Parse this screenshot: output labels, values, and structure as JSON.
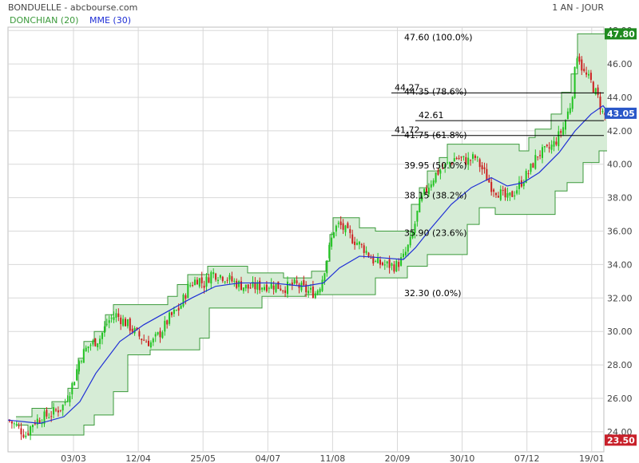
{
  "header": {
    "title": "BONDUELLE - abcbourse.com",
    "period": "1 AN - JOUR"
  },
  "legend": {
    "donchian": "DONCHIAN (20)",
    "mme": "MME (30)"
  },
  "colors": {
    "donchian": "#3b9a3b",
    "donchian_fill": "#d6ecd6",
    "mme": "#1f2fd6",
    "up": "#22c322",
    "down": "#cc1f1f",
    "grid": "#d8d8d8",
    "badge_high": "#1f8a1f",
    "badge_last": "#2a57c8",
    "badge_low": "#c8202a"
  },
  "chart_data": {
    "type": "candlestick",
    "title": "BONDUELLE - abcbourse.com",
    "ylim": [
      22.8,
      48.2
    ],
    "y_ticks": [
      "24.00",
      "26.00",
      "28.00",
      "30.00",
      "32.00",
      "34.00",
      "36.00",
      "38.00",
      "40.00",
      "42.00",
      "44.00",
      "46.00",
      "48.00"
    ],
    "x_ticks": [
      "03/03",
      "12/04",
      "25/05",
      "04/07",
      "11/08",
      "20/09",
      "30/10",
      "07/12",
      "19/01"
    ],
    "price_path": [
      [
        0,
        24.7
      ],
      [
        12,
        24.3
      ],
      [
        22,
        23.8
      ],
      [
        32,
        24.6
      ],
      [
        55,
        25.1
      ],
      [
        70,
        25.6
      ],
      [
        82,
        27.0
      ],
      [
        90,
        28.4
      ],
      [
        100,
        29.1
      ],
      [
        115,
        29.6
      ],
      [
        125,
        30.6
      ],
      [
        135,
        31.0
      ],
      [
        150,
        30.4
      ],
      [
        162,
        29.8
      ],
      [
        170,
        29.5
      ],
      [
        180,
        29.3
      ],
      [
        192,
        30.0
      ],
      [
        202,
        30.8
      ],
      [
        215,
        31.4
      ],
      [
        226,
        32.7
      ],
      [
        238,
        33.2
      ],
      [
        245,
        32.8
      ],
      [
        255,
        33.5
      ],
      [
        270,
        33.3
      ],
      [
        285,
        32.9
      ],
      [
        300,
        32.6
      ],
      [
        315,
        32.7
      ],
      [
        330,
        32.8
      ],
      [
        345,
        32.6
      ],
      [
        360,
        32.8
      ],
      [
        375,
        32.4
      ],
      [
        385,
        32.3
      ],
      [
        392,
        32.9
      ],
      [
        400,
        34.5
      ],
      [
        408,
        36.1
      ],
      [
        415,
        36.4
      ],
      [
        430,
        35.6
      ],
      [
        445,
        35.0
      ],
      [
        460,
        34.1
      ],
      [
        472,
        34.0
      ],
      [
        485,
        33.9
      ],
      [
        495,
        34.4
      ],
      [
        505,
        35.5
      ],
      [
        515,
        37.6
      ],
      [
        525,
        38.6
      ],
      [
        535,
        39.4
      ],
      [
        548,
        39.9
      ],
      [
        560,
        40.4
      ],
      [
        575,
        40.2
      ],
      [
        585,
        40.4
      ],
      [
        595,
        39.6
      ],
      [
        605,
        38.7
      ],
      [
        615,
        38.3
      ],
      [
        625,
        37.9
      ],
      [
        635,
        38.4
      ],
      [
        645,
        39.1
      ],
      [
        653,
        39.6
      ],
      [
        663,
        40.6
      ],
      [
        675,
        40.8
      ],
      [
        685,
        41.3
      ],
      [
        695,
        42.2
      ],
      [
        705,
        43.7
      ],
      [
        713,
        46.8
      ],
      [
        720,
        45.5
      ],
      [
        730,
        44.9
      ],
      [
        740,
        43.8
      ],
      [
        746,
        42.8
      ],
      [
        750,
        43.05
      ]
    ],
    "mme_path": [
      [
        0,
        24.7
      ],
      [
        40,
        24.5
      ],
      [
        70,
        24.9
      ],
      [
        90,
        25.8
      ],
      [
        110,
        27.5
      ],
      [
        140,
        29.4
      ],
      [
        170,
        30.4
      ],
      [
        200,
        31.2
      ],
      [
        230,
        32.0
      ],
      [
        260,
        32.7
      ],
      [
        290,
        32.9
      ],
      [
        330,
        32.9
      ],
      [
        370,
        32.7
      ],
      [
        395,
        32.9
      ],
      [
        415,
        33.8
      ],
      [
        440,
        34.5
      ],
      [
        470,
        34.4
      ],
      [
        495,
        34.3
      ],
      [
        510,
        35.0
      ],
      [
        530,
        36.2
      ],
      [
        555,
        37.6
      ],
      [
        580,
        38.6
      ],
      [
        605,
        39.2
      ],
      [
        625,
        38.7
      ],
      [
        645,
        38.9
      ],
      [
        665,
        39.5
      ],
      [
        690,
        40.7
      ],
      [
        710,
        42.0
      ],
      [
        730,
        43.0
      ],
      [
        745,
        43.5
      ],
      [
        750,
        43.2
      ]
    ],
    "donchian_upper": [
      [
        10,
        24.9
      ],
      [
        30,
        24.9
      ],
      [
        30,
        25.4
      ],
      [
        55,
        25.4
      ],
      [
        55,
        25.8
      ],
      [
        75,
        25.8
      ],
      [
        75,
        26.6
      ],
      [
        88,
        26.6
      ],
      [
        88,
        28.4
      ],
      [
        95,
        28.4
      ],
      [
        95,
        29.4
      ],
      [
        108,
        29.4
      ],
      [
        108,
        30.0
      ],
      [
        122,
        30.0
      ],
      [
        122,
        31.0
      ],
      [
        132,
        31.0
      ],
      [
        132,
        31.6
      ],
      [
        178,
        31.6
      ],
      [
        178,
        31.6
      ],
      [
        200,
        31.6
      ],
      [
        200,
        32.1
      ],
      [
        212,
        32.1
      ],
      [
        212,
        32.8
      ],
      [
        225,
        32.8
      ],
      [
        225,
        33.4
      ],
      [
        250,
        33.4
      ],
      [
        250,
        33.9
      ],
      [
        300,
        33.9
      ],
      [
        300,
        33.5
      ],
      [
        345,
        33.5
      ],
      [
        345,
        33.2
      ],
      [
        380,
        33.2
      ],
      [
        380,
        33.6
      ],
      [
        398,
        33.6
      ],
      [
        398,
        34.2
      ],
      [
        403,
        34.2
      ],
      [
        403,
        35.8
      ],
      [
        407,
        35.8
      ],
      [
        407,
        36.8
      ],
      [
        440,
        36.8
      ],
      [
        440,
        36.2
      ],
      [
        460,
        36.2
      ],
      [
        460,
        36.0
      ],
      [
        498,
        36.0
      ],
      [
        498,
        36.0
      ],
      [
        505,
        36.0
      ],
      [
        505,
        37.6
      ],
      [
        515,
        37.6
      ],
      [
        515,
        38.6
      ],
      [
        525,
        38.6
      ],
      [
        525,
        39.6
      ],
      [
        540,
        39.6
      ],
      [
        540,
        40.4
      ],
      [
        550,
        40.4
      ],
      [
        550,
        41.2
      ],
      [
        640,
        41.2
      ],
      [
        640,
        40.8
      ],
      [
        652,
        40.8
      ],
      [
        652,
        41.6
      ],
      [
        660,
        41.6
      ],
      [
        660,
        42.1
      ],
      [
        680,
        42.1
      ],
      [
        680,
        43.0
      ],
      [
        693,
        43.0
      ],
      [
        693,
        44.3
      ],
      [
        705,
        44.3
      ],
      [
        705,
        45.4
      ],
      [
        713,
        45.4
      ],
      [
        713,
        47.8
      ],
      [
        750,
        47.8
      ]
    ],
    "donchian_lower": [
      [
        10,
        24.4
      ],
      [
        25,
        24.4
      ],
      [
        25,
        23.8
      ],
      [
        95,
        23.8
      ],
      [
        95,
        24.4
      ],
      [
        108,
        24.4
      ],
      [
        108,
        25.0
      ],
      [
        132,
        25.0
      ],
      [
        132,
        26.4
      ],
      [
        150,
        26.4
      ],
      [
        150,
        28.6
      ],
      [
        178,
        28.6
      ],
      [
        178,
        28.9
      ],
      [
        240,
        28.9
      ],
      [
        240,
        29.6
      ],
      [
        252,
        29.6
      ],
      [
        252,
        31.4
      ],
      [
        318,
        31.4
      ],
      [
        318,
        32.1
      ],
      [
        372,
        32.1
      ],
      [
        372,
        32.2
      ],
      [
        420,
        32.2
      ],
      [
        420,
        32.2
      ],
      [
        460,
        32.2
      ],
      [
        460,
        33.2
      ],
      [
        500,
        33.2
      ],
      [
        500,
        33.9
      ],
      [
        525,
        33.9
      ],
      [
        525,
        34.6
      ],
      [
        575,
        34.6
      ],
      [
        575,
        36.4
      ],
      [
        590,
        36.4
      ],
      [
        590,
        37.4
      ],
      [
        610,
        37.4
      ],
      [
        610,
        37.0
      ],
      [
        685,
        37.0
      ],
      [
        685,
        38.4
      ],
      [
        700,
        38.4
      ],
      [
        700,
        38.9
      ],
      [
        720,
        38.9
      ],
      [
        720,
        40.1
      ],
      [
        740,
        40.1
      ],
      [
        740,
        40.8
      ],
      [
        750,
        40.8
      ]
    ],
    "fibonacci": {
      "x_start": 500,
      "x_end": 750,
      "levels": [
        {
          "value": 47.6,
          "label": "47.60  (100.0%)"
        },
        {
          "value": 44.35,
          "label": "44.35  (78.6%)"
        },
        {
          "value": 41.75,
          "label": "41.75  (61.8%)"
        },
        {
          "value": 39.95,
          "label": "39.95  (50.0%)"
        },
        {
          "value": 38.15,
          "label": "38.15  (38.2%)"
        },
        {
          "value": 35.9,
          "label": "35.90  (23.6%)"
        },
        {
          "value": 32.3,
          "label": "32.30  (0.0%)"
        }
      ]
    },
    "ref_lines": [
      {
        "value": 44.27,
        "label": "44.27",
        "x_start": 480
      },
      {
        "value": 42.61,
        "label": "42.61",
        "x_start": 510
      },
      {
        "value": 41.72,
        "label": "41.72",
        "x_start": 480
      }
    ],
    "badges": [
      {
        "value": 47.8,
        "label": "47.80",
        "kind": "high"
      },
      {
        "value": 43.05,
        "label": "43.05",
        "kind": "last"
      },
      {
        "value": 23.5,
        "label": "23.50",
        "kind": "low"
      }
    ]
  }
}
